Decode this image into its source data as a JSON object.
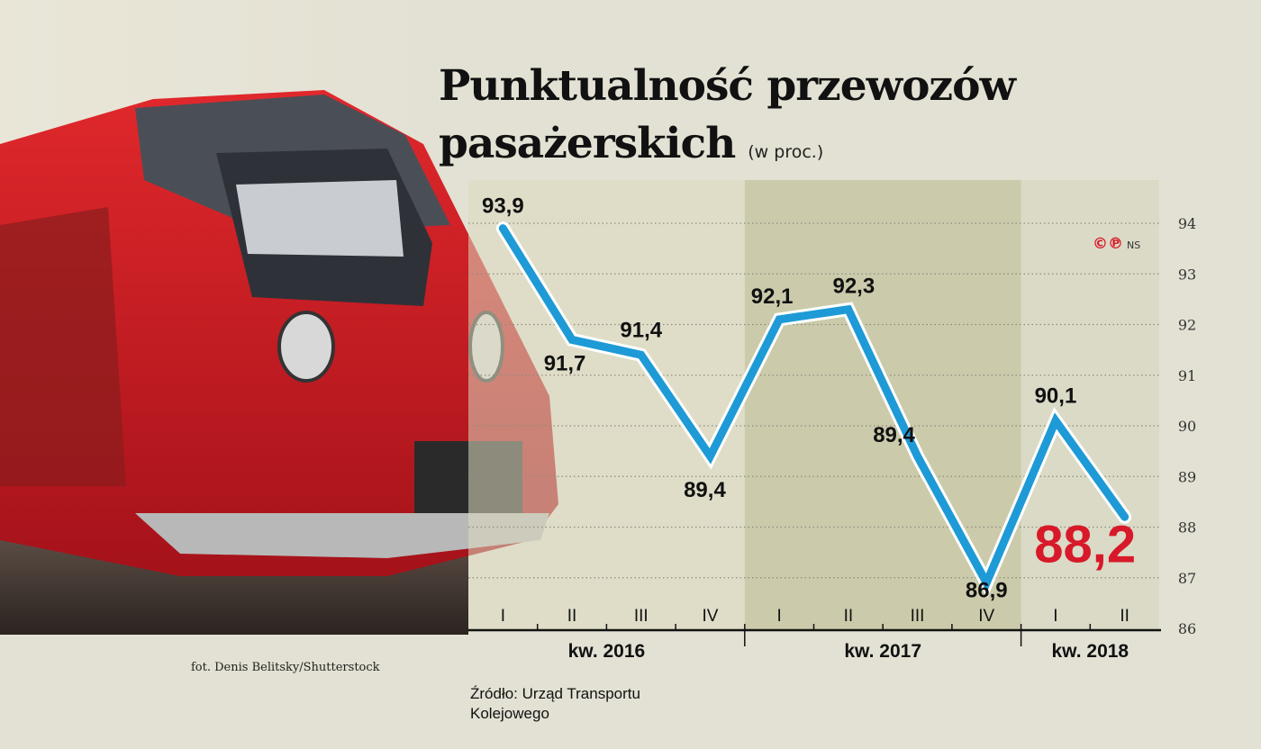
{
  "title_line1": "Punktualność przewozów",
  "title_line2": "pasażerskich",
  "unit": "(w proc.)",
  "photo_credit": "fot. Denis Belitsky/Shutterstock",
  "source": "Źródło: Urząd Transportu Kolejowego",
  "logo": {
    "symbols": "©℗",
    "text": "NS"
  },
  "colors": {
    "line": "#1e9ad6",
    "highlight": "#d7192a",
    "background": "#e2e1d3",
    "band": "#c9c8a6"
  },
  "chart_data": {
    "type": "line",
    "title": "Punktualność przewozów pasażerskich",
    "ylabel": "(w proc.)",
    "categories": [
      "I",
      "II",
      "III",
      "IV",
      "I",
      "II",
      "III",
      "IV",
      "I",
      "II"
    ],
    "groups": [
      {
        "label": "kw. 2016",
        "count": 4
      },
      {
        "label": "kw. 2017",
        "count": 4
      },
      {
        "label": "kw. 2018",
        "count": 2
      }
    ],
    "values": [
      93.9,
      91.7,
      91.4,
      89.4,
      92.1,
      92.3,
      89.4,
      86.9,
      90.1,
      88.2
    ],
    "data_labels": [
      "93,9",
      "91,7",
      "91,4",
      "89,4",
      "92,1",
      "92,3",
      "89,4",
      "86,9",
      "90,1",
      "88,2"
    ],
    "ylim": [
      86,
      94
    ],
    "yticks": [
      "86",
      "87",
      "88",
      "89",
      "90",
      "91",
      "92",
      "93",
      "94"
    ],
    "grid": true,
    "y_axis_position": "right"
  }
}
